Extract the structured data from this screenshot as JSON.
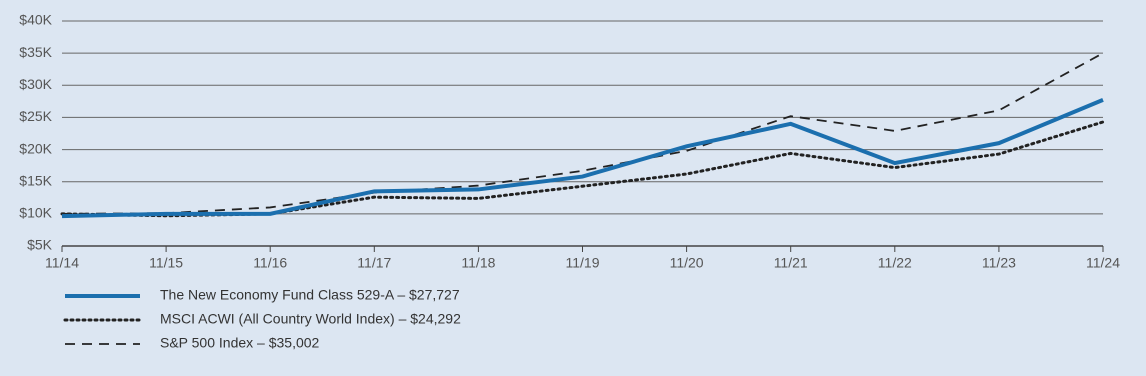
{
  "chart_data": {
    "type": "line",
    "categories": [
      "11/14",
      "11/15",
      "11/16",
      "11/17",
      "11/18",
      "11/19",
      "11/20",
      "11/21",
      "11/22",
      "11/23",
      "11/24"
    ],
    "series": [
      {
        "name": "The New Economy Fund Class 529-A – $27,727",
        "color": "#1b6fae",
        "line_style": "solid",
        "values": [
          9650,
          10000,
          10000,
          13500,
          13800,
          15800,
          20500,
          24000,
          17900,
          21000,
          27727
        ]
      },
      {
        "name": "MSCI ACWI (All Country World Index) – $24,292",
        "color": "#222222",
        "line_style": "dotted",
        "values": [
          10000,
          9700,
          10000,
          12600,
          12400,
          14300,
          16200,
          19400,
          17200,
          19300,
          24292
        ]
      },
      {
        "name": "S&P 500 Index – $35,002",
        "color": "#222222",
        "line_style": "dashed",
        "values": [
          10000,
          10100,
          11000,
          13300,
          14400,
          16700,
          19800,
          25200,
          22900,
          26100,
          35002
        ]
      }
    ],
    "ylim": [
      5000,
      40000
    ],
    "yticks": [
      {
        "value": 5000,
        "label": "$5K"
      },
      {
        "value": 10000,
        "label": "$10K"
      },
      {
        "value": 15000,
        "label": "$15K"
      },
      {
        "value": 20000,
        "label": "$20K"
      },
      {
        "value": 25000,
        "label": "$25K"
      },
      {
        "value": 30000,
        "label": "$30K"
      },
      {
        "value": 35000,
        "label": "$35K"
      },
      {
        "value": 40000,
        "label": "$40K"
      }
    ],
    "grid": true,
    "legend": "bottom-left"
  }
}
